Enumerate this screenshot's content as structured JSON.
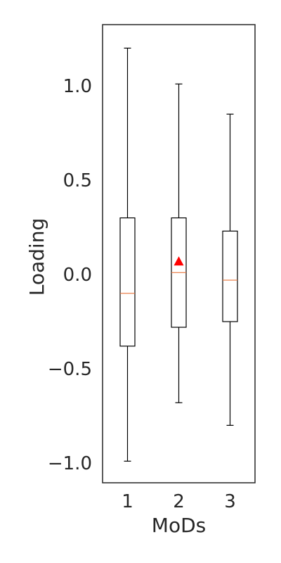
{
  "chart_data": {
    "type": "box",
    "xlabel": "MoDs",
    "ylabel": "Loading",
    "ylim": [
      -1.1,
      1.33
    ],
    "yticks": [
      -1.0,
      -0.5,
      0.0,
      0.5,
      1.0
    ],
    "ytick_labels": [
      "−1.0",
      "−0.5",
      "0.0",
      "0.5",
      "1.0"
    ],
    "categories": [
      "1",
      "2",
      "3"
    ],
    "boxes": [
      {
        "category": "1",
        "whisker_low": -0.99,
        "q1": -0.38,
        "median": -0.1,
        "q3": 0.3,
        "whisker_high": 1.2
      },
      {
        "category": "2",
        "whisker_low": -0.68,
        "q1": -0.28,
        "median": 0.01,
        "q3": 0.3,
        "whisker_high": 1.01,
        "mean": 0.07
      },
      {
        "category": "3",
        "whisker_low": -0.8,
        "q1": -0.25,
        "median": -0.03,
        "q3": 0.23,
        "whisker_high": 0.85
      }
    ],
    "colors": {
      "box": "#000000",
      "median": "#e8743b",
      "mean_marker": "#ff0000",
      "frame": "#262626"
    },
    "grid": false,
    "legend": "none"
  }
}
